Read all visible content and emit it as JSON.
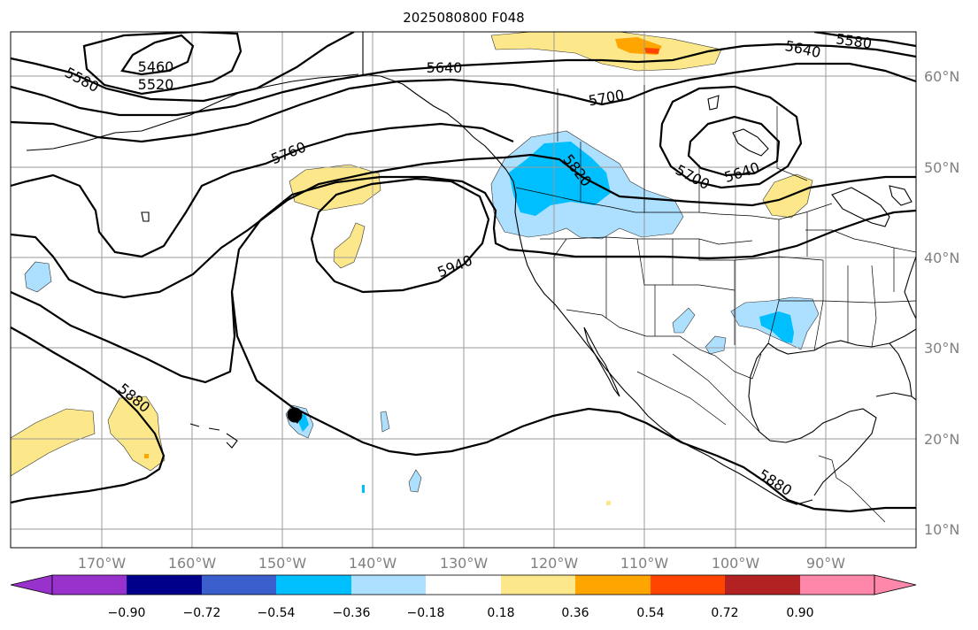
{
  "title": "2025080800 F048",
  "latitude_labels": [
    "60°N",
    "50°N",
    "40°N",
    "30°N",
    "20°N",
    "10°N"
  ],
  "longitude_labels": [
    "170°W",
    "160°W",
    "150°W",
    "140°W",
    "130°W",
    "120°W",
    "110°W",
    "100°W",
    "90°W"
  ],
  "contour_labels": [
    "5460",
    "5520",
    "5580",
    "5640",
    "5700",
    "5760",
    "5820",
    "5880",
    "5940",
    "5580",
    "5640",
    "5700",
    "5640",
    "5880"
  ],
  "colorbar": {
    "tick_labels": [
      "−0.90",
      "−0.72",
      "−0.54",
      "−0.36",
      "−0.18",
      "0.18",
      "0.36",
      "0.54",
      "0.72",
      "0.90"
    ],
    "colors": [
      "#9932CC",
      "#00008B",
      "#3A5FCD",
      "#00BFFF",
      "#ADDFFF",
      "#FFFFFF",
      "#FCE88A",
      "#FFA500",
      "#FF4500",
      "#B22222",
      "#FF88AA"
    ]
  },
  "anomaly_colors": {
    "neg_light": "#ADDFFF",
    "neg_mid": "#00BFFF",
    "pos_light": "#FCE88A",
    "pos_mid": "#FFA500",
    "pos_strong": "#FF4500"
  }
}
